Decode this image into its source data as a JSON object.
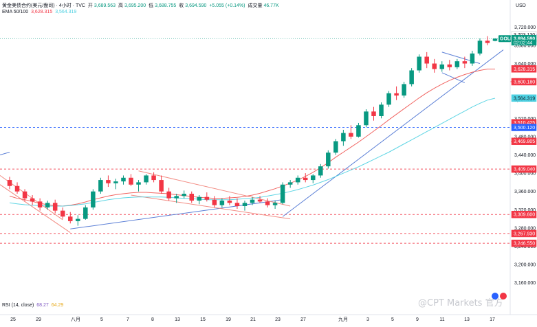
{
  "header": {
    "symbol_line": "黄金美债合约(美元/盎司) · 4小时 · TVC",
    "open_label": "开",
    "open": "3,689.563",
    "high_label": "高",
    "high": "3,695.200",
    "low_label": "低",
    "low": "3,688.755",
    "close_label": "收",
    "close": "3,694.590",
    "change": "+5.055 (+0.14%)",
    "volume_label": "成交量",
    "volume": "46.77K",
    "ema_label": "EMA 50/100",
    "ema50": "3,628.315",
    "ema100": "3,564.319",
    "currency": "USD"
  },
  "rsi": {
    "label": "RSI (14, close)",
    "value1": "68.27",
    "value2": "64.29"
  },
  "watermark": "@CPT Markets 官方",
  "colors": {
    "up": "#089981",
    "down": "#f23645",
    "trend": "#5b7fd6",
    "ema50": "#ef5350",
    "ema100": "#4dd0e1",
    "resistance": "#f23645",
    "support_blue": "#2962ff"
  },
  "chart_data": {
    "type": "candlestick",
    "ylim": [
      3140,
      3740
    ],
    "y_ticks": [
      "3,720.000",
      "3,680.000",
      "3,640.000",
      "3,600.000",
      "3,560.000",
      "3,520.000",
      "3,480.000",
      "3,440.000",
      "3,400.000",
      "3,360.000",
      "3,320.000",
      "3,280.000",
      "3,240.000",
      "3,200.000",
      "3,160.000"
    ],
    "x_ticks": [
      "25",
      "29",
      "八月",
      "5",
      "7",
      "8",
      "13",
      "15",
      "19",
      "21",
      "23",
      "27",
      "九月",
      "3",
      "5",
      "9",
      "11",
      "13",
      "17"
    ],
    "price_labels": [
      {
        "text": "3,703.130",
        "value": 3703.13,
        "color": "#131722",
        "bg": "#ffffff"
      },
      {
        "text": "GOLD",
        "value": 3694.59,
        "color": "#ffffff",
        "bg": "#089981"
      },
      {
        "text": "3,694.590",
        "value": 3694.59,
        "color": "#ffffff",
        "bg": "#089981"
      },
      {
        "text": "02:02:44",
        "value": 3686.0,
        "color": "#ffffff",
        "bg": "#089981"
      },
      {
        "text": "3,628.315",
        "value": 3628.315,
        "color": "#ffffff",
        "bg": "#f23645"
      },
      {
        "text": "3,600.180",
        "value": 3600.18,
        "color": "#ffffff",
        "bg": "#f23645"
      },
      {
        "text": "3,564.319",
        "value": 3564.319,
        "color": "#131722",
        "bg": "#4dd0e1"
      },
      {
        "text": "3,510.425",
        "value": 3510.425,
        "color": "#ffffff",
        "bg": "#f23645"
      },
      {
        "text": "3,500.120",
        "value": 3500.12,
        "color": "#ffffff",
        "bg": "#2962ff"
      },
      {
        "text": "3,469.805",
        "value": 3469.805,
        "color": "#ffffff",
        "bg": "#f23645"
      },
      {
        "text": "3,409.040",
        "value": 3409.04,
        "color": "#ffffff",
        "bg": "#f23645"
      },
      {
        "text": "3,309.600",
        "value": 3309.6,
        "color": "#ffffff",
        "bg": "#f23645"
      },
      {
        "text": "3,267.930",
        "value": 3267.93,
        "color": "#ffffff",
        "bg": "#f23645"
      },
      {
        "text": "3,246.550",
        "value": 3246.55,
        "color": "#ffffff",
        "bg": "#f23645"
      }
    ],
    "horizontal_levels": [
      {
        "value": 3703.13,
        "color": "#2962ff",
        "start_index": 85
      },
      {
        "value": 3600.18,
        "color": "#f23645",
        "start_index": 70
      },
      {
        "value": 3510.425,
        "color": "#f23645",
        "start_index": 72
      },
      {
        "value": 3500.12,
        "color": "#2962ff",
        "start_index": 0
      },
      {
        "value": 3469.805,
        "color": "#f23645",
        "start_index": 68
      },
      {
        "value": 3409.04,
        "color": "#f23645",
        "start_index": 0
      },
      {
        "value": 3309.6,
        "color": "#f23645",
        "start_index": 0
      },
      {
        "value": 3267.93,
        "color": "#f23645",
        "start_index": 0
      },
      {
        "value": 3246.55,
        "color": "#f23645",
        "start_index": 0
      }
    ],
    "series": [
      {
        "name": "EMA 50",
        "values": [
          3350,
          3345,
          3342,
          3338,
          3334,
          3331,
          3329,
          3328,
          3330,
          3333,
          3337,
          3342,
          3346,
          3350,
          3353,
          3355,
          3357,
          3358,
          3358,
          3357,
          3356,
          3355,
          3353,
          3351,
          3349,
          3347,
          3346,
          3345,
          3345,
          3346,
          3347,
          3349,
          3352,
          3356,
          3361,
          3366,
          3372,
          3378,
          3385,
          3393,
          3402,
          3412,
          3423,
          3435,
          3446,
          3457,
          3468,
          3480,
          3492,
          3504,
          3517,
          3529,
          3541,
          3553,
          3565,
          3576,
          3586,
          3595,
          3603,
          3610,
          3616,
          3621,
          3625,
          3628,
          3628
        ]
      },
      {
        "name": "EMA 100",
        "values": [
          3335,
          3333,
          3331,
          3330,
          3329,
          3328,
          3328,
          3328,
          3329,
          3331,
          3333,
          3336,
          3339,
          3342,
          3344,
          3346,
          3347,
          3348,
          3348,
          3348,
          3348,
          3347,
          3346,
          3345,
          3344,
          3343,
          3342,
          3342,
          3342,
          3342,
          3343,
          3344,
          3345,
          3347,
          3350,
          3353,
          3356,
          3360,
          3364,
          3369,
          3374,
          3380,
          3386,
          3393,
          3400,
          3407,
          3414,
          3422,
          3430,
          3438,
          3446,
          3455,
          3464,
          3473,
          3482,
          3491,
          3500,
          3509,
          3518,
          3527,
          3536,
          3545,
          3553,
          3560,
          3564
        ]
      }
    ],
    "candles": [
      [
        3385,
        3392,
        3365,
        3372
      ],
      [
        3372,
        3380,
        3355,
        3360
      ],
      [
        3360,
        3365,
        3338,
        3345
      ],
      [
        3345,
        3352,
        3330,
        3338
      ],
      [
        3338,
        3345,
        3318,
        3325
      ],
      [
        3325,
        3340,
        3320,
        3335
      ],
      [
        3335,
        3342,
        3312,
        3318
      ],
      [
        3318,
        3325,
        3300,
        3305
      ],
      [
        3305,
        3315,
        3290,
        3295
      ],
      [
        3295,
        3308,
        3285,
        3300
      ],
      [
        3300,
        3330,
        3298,
        3325
      ],
      [
        3325,
        3365,
        3320,
        3360
      ],
      [
        3360,
        3390,
        3355,
        3385
      ],
      [
        3385,
        3395,
        3370,
        3378
      ],
      [
        3378,
        3388,
        3365,
        3382
      ],
      [
        3382,
        3395,
        3375,
        3390
      ],
      [
        3390,
        3398,
        3372,
        3375
      ],
      [
        3375,
        3385,
        3360,
        3380
      ],
      [
        3380,
        3398,
        3375,
        3395
      ],
      [
        3395,
        3402,
        3380,
        3385
      ],
      [
        3385,
        3395,
        3355,
        3360
      ],
      [
        3360,
        3368,
        3340,
        3345
      ],
      [
        3345,
        3355,
        3335,
        3350
      ],
      [
        3350,
        3362,
        3345,
        3355
      ],
      [
        3355,
        3360,
        3335,
        3340
      ],
      [
        3340,
        3352,
        3332,
        3348
      ],
      [
        3348,
        3358,
        3338,
        3342
      ],
      [
        3342,
        3350,
        3325,
        3330
      ],
      [
        3330,
        3345,
        3325,
        3340
      ],
      [
        3340,
        3350,
        3330,
        3335
      ],
      [
        3335,
        3345,
        3322,
        3328
      ],
      [
        3328,
        3340,
        3318,
        3335
      ],
      [
        3335,
        3348,
        3330,
        3342
      ],
      [
        3342,
        3350,
        3335,
        3338
      ],
      [
        3338,
        3345,
        3325,
        3330
      ],
      [
        3330,
        3340,
        3322,
        3335
      ],
      [
        3335,
        3380,
        3332,
        3375
      ],
      [
        3375,
        3385,
        3368,
        3380
      ],
      [
        3380,
        3395,
        3375,
        3390
      ],
      [
        3390,
        3400,
        3380,
        3385
      ],
      [
        3385,
        3398,
        3378,
        3395
      ],
      [
        3395,
        3420,
        3390,
        3415
      ],
      [
        3415,
        3450,
        3410,
        3445
      ],
      [
        3445,
        3475,
        3440,
        3470
      ],
      [
        3470,
        3495,
        3460,
        3488
      ],
      [
        3488,
        3505,
        3475,
        3480
      ],
      [
        3480,
        3510,
        3478,
        3505
      ],
      [
        3505,
        3540,
        3500,
        3535
      ],
      [
        3535,
        3545,
        3515,
        3525
      ],
      [
        3525,
        3555,
        3520,
        3550
      ],
      [
        3550,
        3580,
        3545,
        3575
      ],
      [
        3575,
        3590,
        3560,
        3570
      ],
      [
        3570,
        3600,
        3565,
        3595
      ],
      [
        3595,
        3630,
        3590,
        3625
      ],
      [
        3625,
        3660,
        3620,
        3655
      ],
      [
        3655,
        3665,
        3630,
        3640
      ],
      [
        3640,
        3650,
        3620,
        3628
      ],
      [
        3628,
        3645,
        3622,
        3638
      ],
      [
        3638,
        3648,
        3625,
        3632
      ],
      [
        3632,
        3650,
        3628,
        3645
      ],
      [
        3645,
        3655,
        3630,
        3640
      ],
      [
        3640,
        3668,
        3635,
        3662
      ],
      [
        3662,
        3695,
        3658,
        3690
      ],
      [
        3690,
        3700,
        3680,
        3685
      ],
      [
        3689.563,
        3695.2,
        3688.755,
        3694.59
      ]
    ]
  }
}
